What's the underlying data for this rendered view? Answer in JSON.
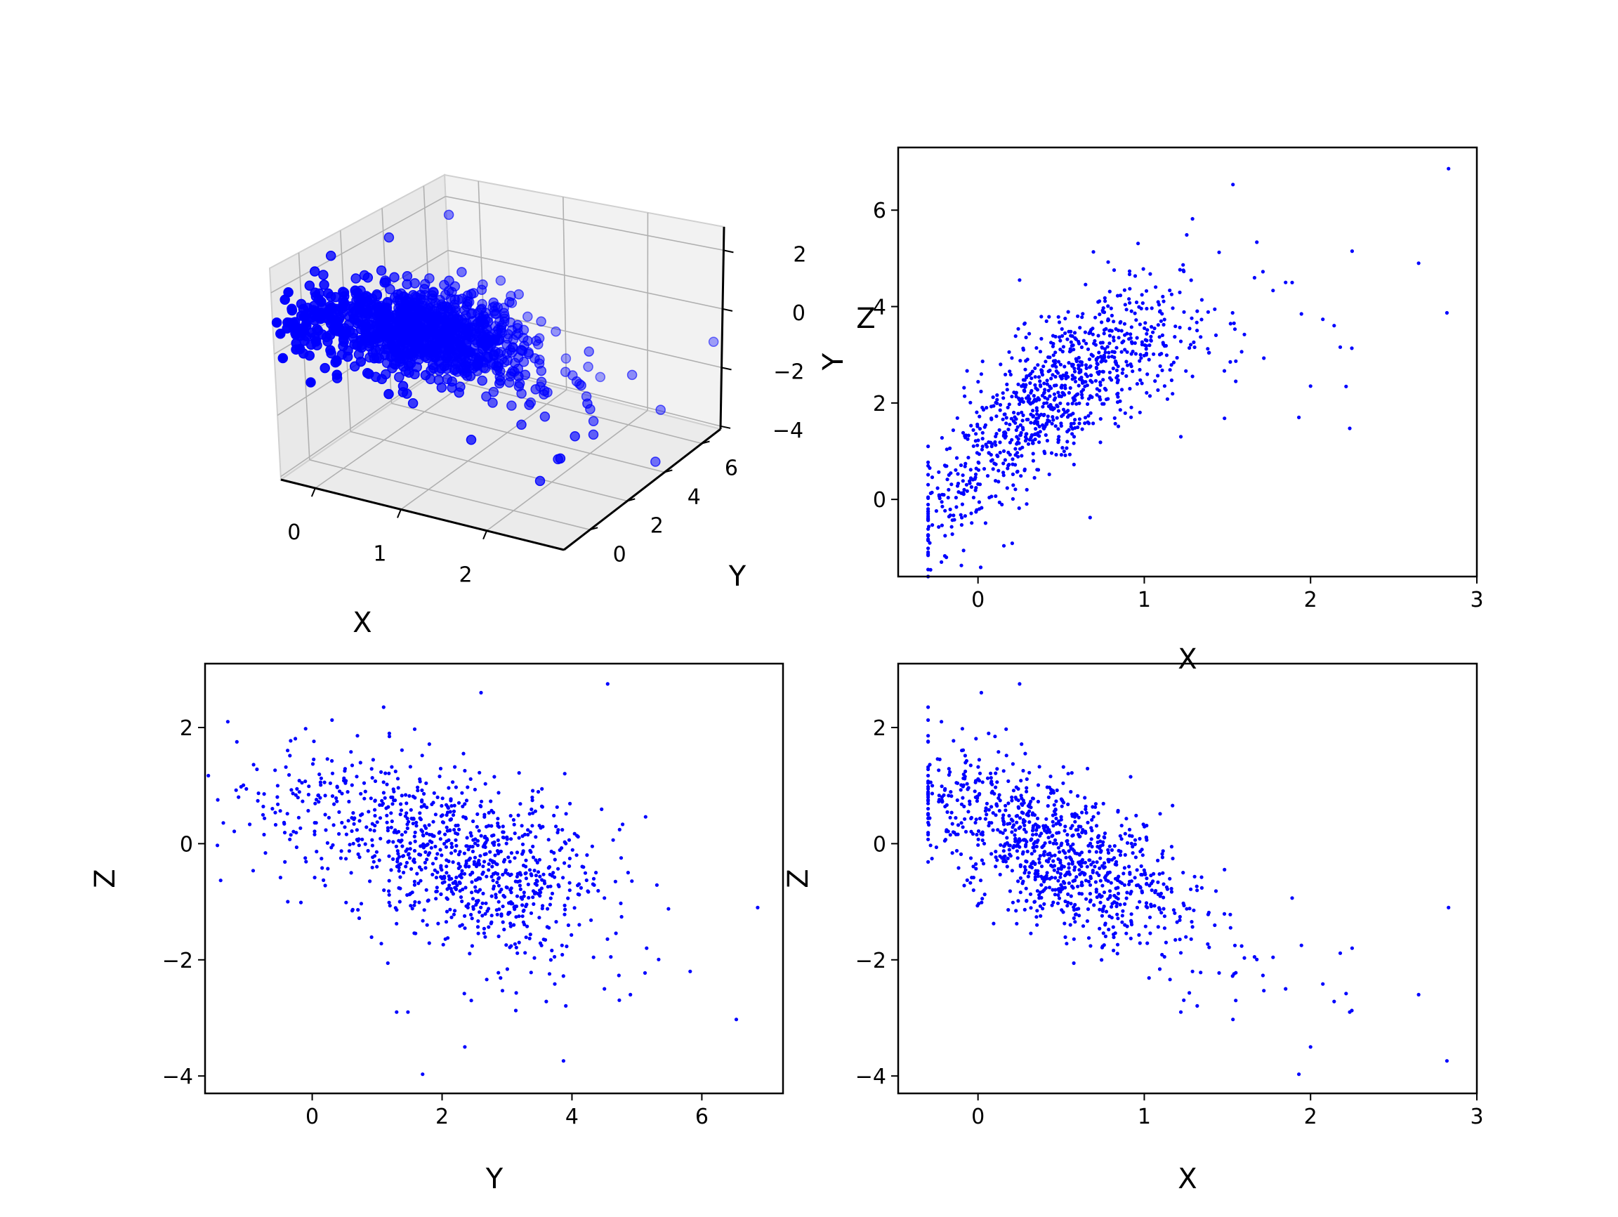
{
  "chart_data": [
    {
      "id": "xyz3d",
      "type": "scatter3d",
      "xlabel": "X",
      "ylabel": "Y",
      "zlabel": "Z",
      "xticks": [
        "0",
        "1",
        "2"
      ],
      "yticks": [
        "0",
        "2",
        "4",
        "6"
      ],
      "zticks": [
        "−4",
        "−2",
        "0",
        "2"
      ],
      "xlim": [
        -0.4,
        2.9
      ],
      "ylim": [
        -1.4,
        7.0
      ],
      "zlim": [
        -4.1,
        2.8
      ],
      "grid": true,
      "marker_color": "#0000ff",
      "outliers": [
        {
          "x": 2.83,
          "y": 6.86,
          "z": -1.1
        },
        {
          "x": 2.82,
          "y": 3.87,
          "z": -3.74
        },
        {
          "x": 2.65,
          "y": 4.9,
          "z": -2.6
        },
        {
          "x": 2.25,
          "y": 5.15,
          "z": -1.8
        },
        {
          "x": 2.0,
          "y": 2.35,
          "z": -3.5
        },
        {
          "x": 1.93,
          "y": 1.7,
          "z": -3.97
        },
        {
          "x": 1.29,
          "y": 5.82,
          "z": -2.2
        },
        {
          "x": 1.22,
          "y": 1.3,
          "z": -2.9
        },
        {
          "x": 1.85,
          "y": 4.5,
          "z": -2.5
        },
        {
          "x": 1.55,
          "y": 2.45,
          "z": -2.7
        },
        {
          "x": -0.22,
          "y": -1.3,
          "z": 2.1
        },
        {
          "x": -0.3,
          "y": 1.1,
          "z": 2.35
        },
        {
          "x": 0.25,
          "y": 4.55,
          "z": 2.75
        },
        {
          "x": 0.02,
          "y": 2.6,
          "z": 2.6
        }
      ],
      "n_points": 1000
    },
    {
      "id": "xy",
      "type": "scatter",
      "xlabel": "X",
      "ylabel": "Y",
      "xticks": [
        0,
        1,
        2,
        3
      ],
      "yticks": [
        0,
        2,
        4,
        6
      ],
      "xlim": [
        -0.48,
        3.0
      ],
      "ylim": [
        -1.6,
        7.3
      ],
      "marker_color": "#0000ff",
      "n_points": 1000
    },
    {
      "id": "yz",
      "type": "scatter",
      "xlabel": "Y",
      "ylabel": "Z",
      "xticks": [
        0,
        2,
        4,
        6
      ],
      "yticks": [
        -4,
        -2,
        0,
        2
      ],
      "xlim": [
        -1.65,
        7.25
      ],
      "ylim": [
        -4.3,
        3.1
      ],
      "marker_color": "#0000ff",
      "n_points": 1000
    },
    {
      "id": "xz",
      "type": "scatter",
      "xlabel": "X",
      "ylabel": "Z",
      "xticks": [
        0,
        1,
        2,
        3
      ],
      "yticks": [
        -4,
        -2,
        0,
        2
      ],
      "xlim": [
        -0.48,
        3.0
      ],
      "ylim": [
        -4.3,
        3.1
      ],
      "marker_color": "#0000ff",
      "n_points": 1000
    }
  ]
}
